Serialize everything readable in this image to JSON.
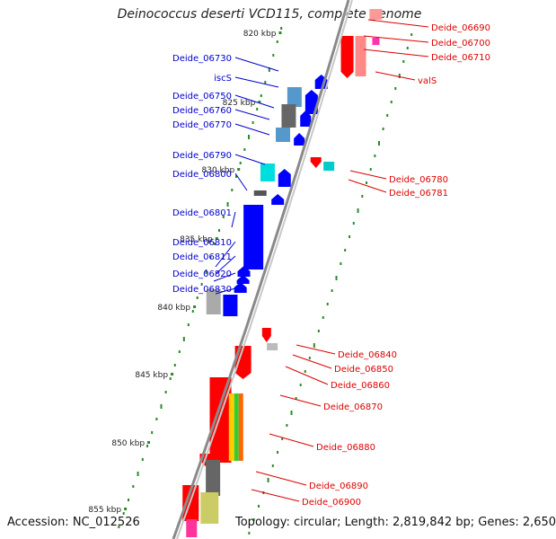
{
  "title": "Deinococcus deserti VCD115, complete genome",
  "footer": {
    "accession": "Accession: NC_012526",
    "summary": "Topology: circular; Length: 2,819,842 bp; Genes: 2,650"
  },
  "colors": {
    "backbone": "#8a8a8a",
    "forward_label": "#0000cc",
    "reverse_label": "#dd0000",
    "tick_dot": "#2a8a2a",
    "ruler_text": "#222222"
  },
  "ruler": [
    {
      "label": "820 kbp"
    },
    {
      "label": "825 kbp"
    },
    {
      "label": "830 kbp"
    },
    {
      "label": "835 kbp"
    },
    {
      "label": "840 kbp"
    },
    {
      "label": "845 kbp"
    },
    {
      "label": "850 kbp"
    },
    {
      "label": "855 kbp"
    }
  ],
  "forward_genes": [
    {
      "label": "Deide_06730"
    },
    {
      "label": "iscS"
    },
    {
      "label": "Deide_06750"
    },
    {
      "label": "Deide_06760"
    },
    {
      "label": "Deide_06770"
    },
    {
      "label": "Deide_06790"
    },
    {
      "label": "Deide_06800"
    },
    {
      "label": "Deide_06801"
    },
    {
      "label": "Deide_06810"
    },
    {
      "label": "Deide_06811"
    },
    {
      "label": "Deide_06820"
    },
    {
      "label": "Deide_06830"
    }
  ],
  "reverse_genes": [
    {
      "label": "Deide_06690"
    },
    {
      "label": "Deide_06700"
    },
    {
      "label": "Deide_06710"
    },
    {
      "label": "valS"
    },
    {
      "label": "Deide_06780"
    },
    {
      "label": "Deide_06781"
    },
    {
      "label": "Deide_06840"
    },
    {
      "label": "Deide_06850"
    },
    {
      "label": "Deide_06860"
    },
    {
      "label": "Deide_06870"
    },
    {
      "label": "Deide_06880"
    },
    {
      "label": "Deide_06890"
    },
    {
      "label": "Deide_06900"
    }
  ]
}
